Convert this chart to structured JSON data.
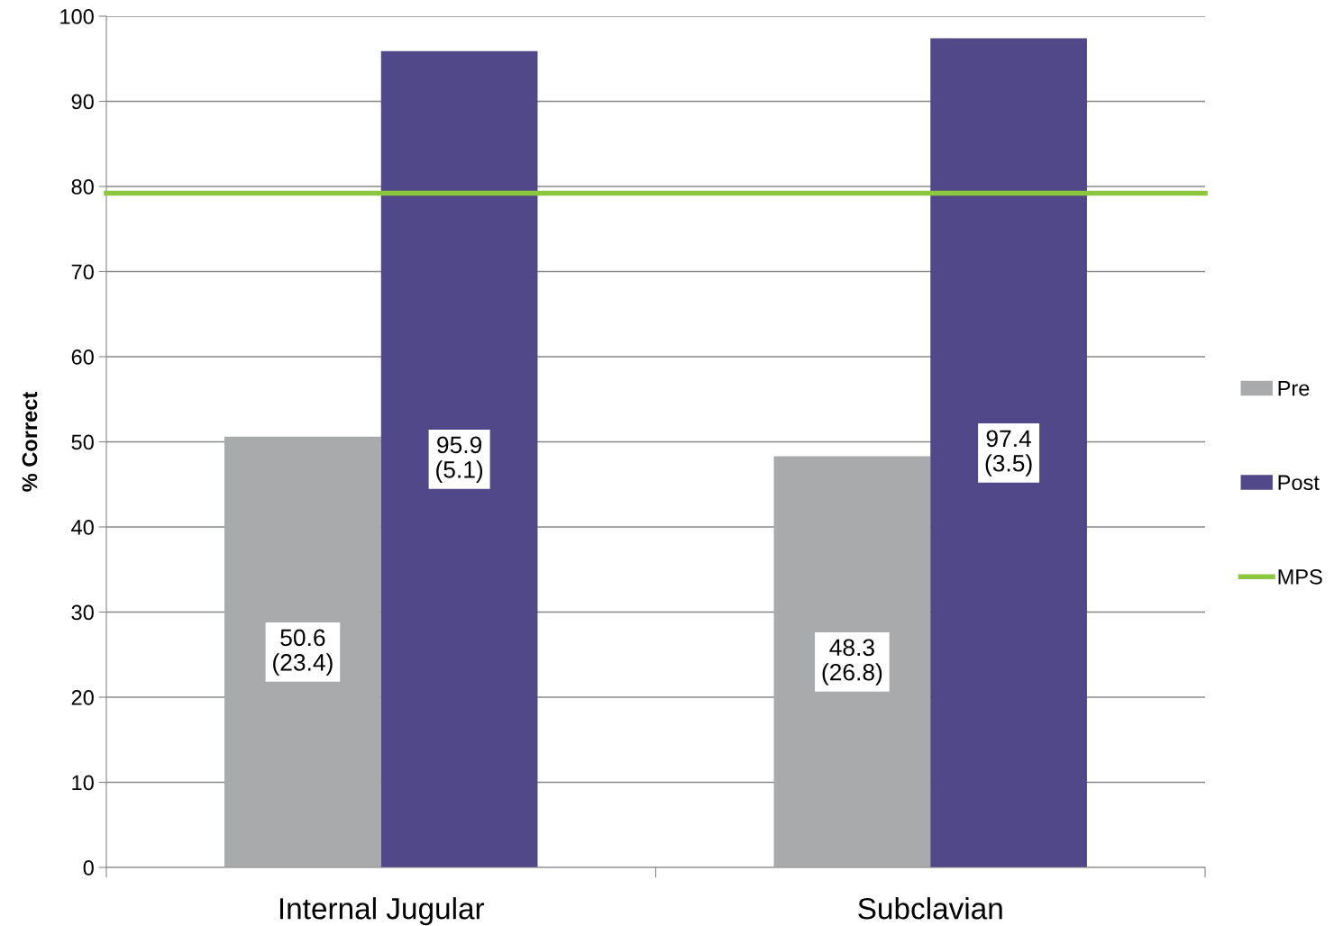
{
  "chart_data": {
    "type": "bar",
    "ylabel": "% Correct",
    "categories": [
      "Internal Jugular",
      "Subclavian"
    ],
    "series": [
      {
        "name": "Pre",
        "color": "#a9aaab",
        "values": [
          50.6,
          48.3
        ],
        "value_labels": [
          "50.6\n(23.4)",
          "48.3\n(26.8)"
        ]
      },
      {
        "name": "Post",
        "color": "#514889",
        "values": [
          95.9,
          97.4
        ],
        "value_labels": [
          "95.9\n(5.1)",
          "97.4\n(3.5)"
        ]
      }
    ],
    "ref_lines": [
      {
        "axis": "y",
        "value": 79.2,
        "label": "MPS",
        "color": "#8dc63f"
      }
    ],
    "ylim": [
      0,
      100
    ],
    "yticks": [
      0,
      10,
      20,
      30,
      40,
      50,
      60,
      70,
      80,
      90,
      100
    ],
    "grid": "y",
    "legend": "right"
  }
}
